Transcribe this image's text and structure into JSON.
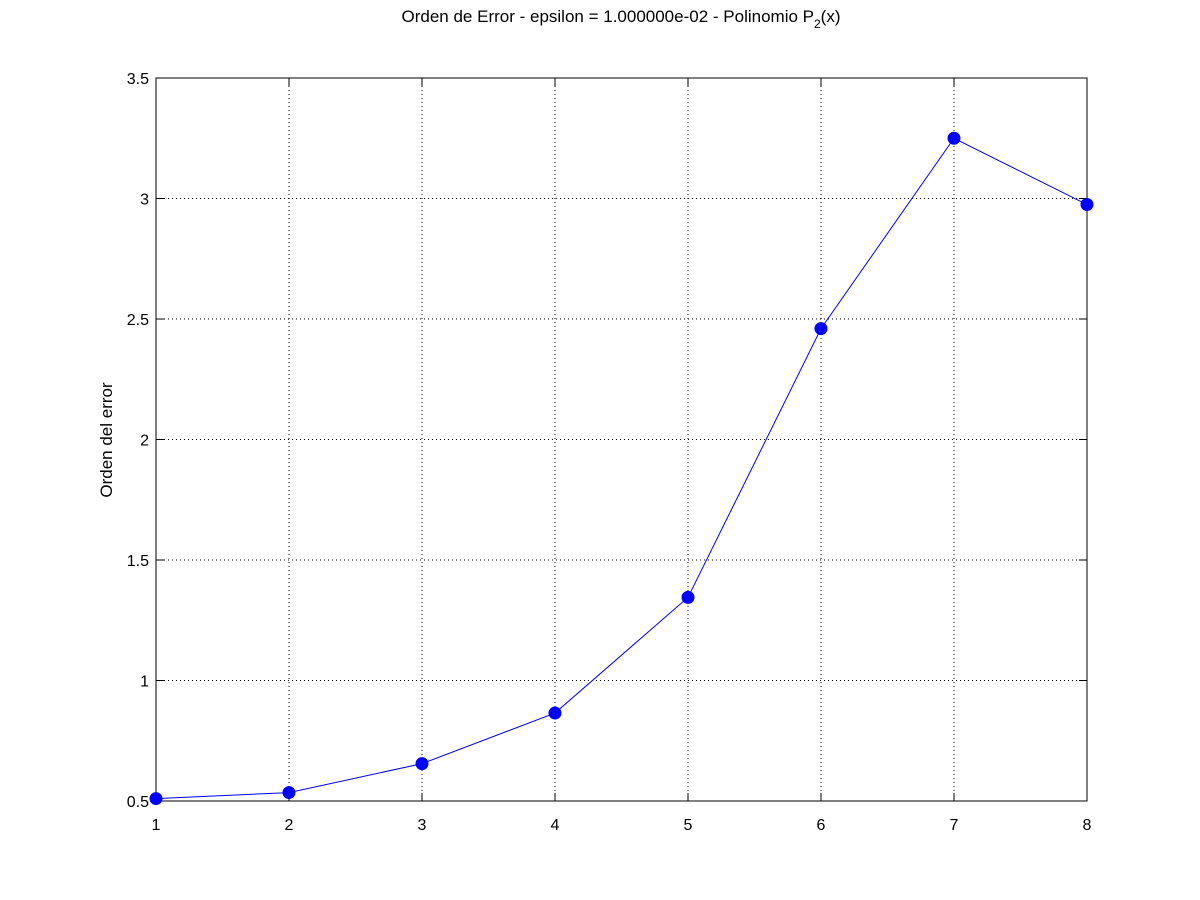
{
  "chart_data": {
    "type": "line",
    "title": "Orden de Error - epsilon = 1.000000e-02 - Polinomio P",
    "title_subscript": "2",
    "title_suffix": "(x)",
    "xlabel": "",
    "ylabel": "Orden del error",
    "x": [
      1,
      2,
      3,
      4,
      5,
      6,
      7,
      8
    ],
    "series": [
      {
        "values": [
          0.51,
          0.535,
          0.655,
          0.865,
          1.345,
          2.46,
          3.25,
          2.975
        ],
        "color": "#0000ff",
        "marker": "circle"
      }
    ],
    "xlim": [
      1,
      8
    ],
    "ylim": [
      0.5,
      3.5
    ],
    "xticks": [
      1,
      2,
      3,
      4,
      5,
      6,
      7,
      8
    ],
    "xtick_labels": [
      "1",
      "2",
      "3",
      "4",
      "5",
      "6",
      "7",
      "8"
    ],
    "yticks": [
      0.5,
      1,
      1.5,
      2,
      2.5,
      3,
      3.5
    ],
    "ytick_labels": [
      "0.5",
      "1",
      "1.5",
      "2",
      "2.5",
      "3",
      "3.5"
    ],
    "grid": true
  }
}
